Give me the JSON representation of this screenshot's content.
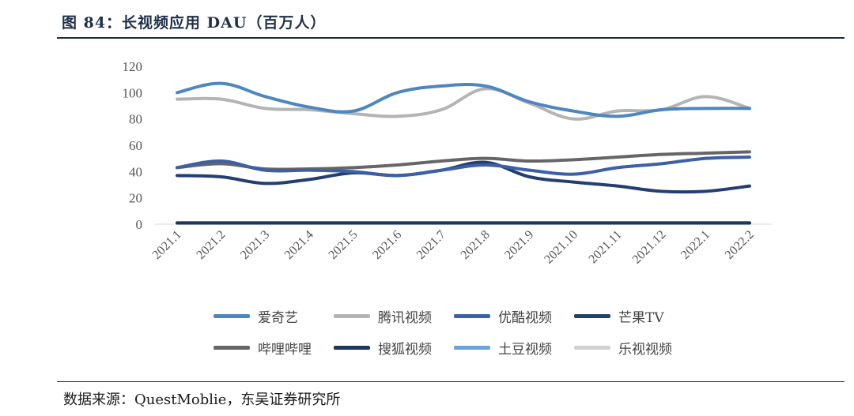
{
  "title": "图 84：长视频应用 DAU（百万人）",
  "source": "数据来源：QuestMoblie，东吴证券研究所",
  "chart_data": {
    "type": "line",
    "title": "长视频应用 DAU（百万人）",
    "xlabel": "",
    "ylabel": "",
    "ylim": [
      0,
      120
    ],
    "yticks": [
      0,
      20,
      40,
      60,
      80,
      100,
      120
    ],
    "categories": [
      "2021.1",
      "2021.2",
      "2021.3",
      "2021.4",
      "2021.5",
      "2021.6",
      "2021.7",
      "2021.8",
      "2021.9",
      "2021.10",
      "2021.11",
      "2021.12",
      "2022.1",
      "2022.2"
    ],
    "series": [
      {
        "name": "爱奇艺",
        "color": "#4f86c0",
        "values": [
          100,
          107,
          97,
          89,
          86,
          100,
          105,
          105,
          93,
          86,
          82,
          87,
          88,
          88
        ]
      },
      {
        "name": "腾讯视频",
        "color": "#b4b4b4",
        "values": [
          95,
          95,
          88,
          87,
          84,
          82,
          87,
          103,
          92,
          80,
          86,
          87,
          97,
          88
        ]
      },
      {
        "name": "优酷视频",
        "color": "#3d5fa6",
        "values": [
          43,
          48,
          41,
          41,
          40,
          37,
          41,
          45,
          41,
          38,
          43,
          46,
          50,
          51
        ]
      },
      {
        "name": "芒果TV",
        "color": "#233e70",
        "values": [
          37,
          36,
          31,
          34,
          39,
          37,
          41,
          47,
          36,
          32,
          29,
          25,
          25,
          29
        ]
      },
      {
        "name": "哔哩哔哩",
        "color": "#666666",
        "values": [
          43,
          46,
          42,
          42,
          43,
          45,
          48,
          50,
          48,
          49,
          51,
          53,
          54,
          55
        ]
      },
      {
        "name": "搜狐视频",
        "color": "#1e3560",
        "values": [
          1,
          1,
          1,
          1,
          1,
          1,
          1,
          1,
          1,
          1,
          1,
          1,
          1,
          1
        ]
      },
      {
        "name": "土豆视频",
        "color": "#6fa3d6",
        "values": [
          1,
          1,
          1,
          1,
          1,
          1,
          1,
          1,
          1,
          1,
          1,
          1,
          1,
          1
        ]
      },
      {
        "name": "乐视视频",
        "color": "#d0d0d0",
        "values": [
          0.5,
          0.5,
          0.5,
          0.5,
          0.5,
          0.5,
          0.5,
          0.5,
          0.5,
          0.5,
          0.5,
          0.5,
          0.5,
          0.5
        ]
      }
    ],
    "legend": "bottom"
  }
}
